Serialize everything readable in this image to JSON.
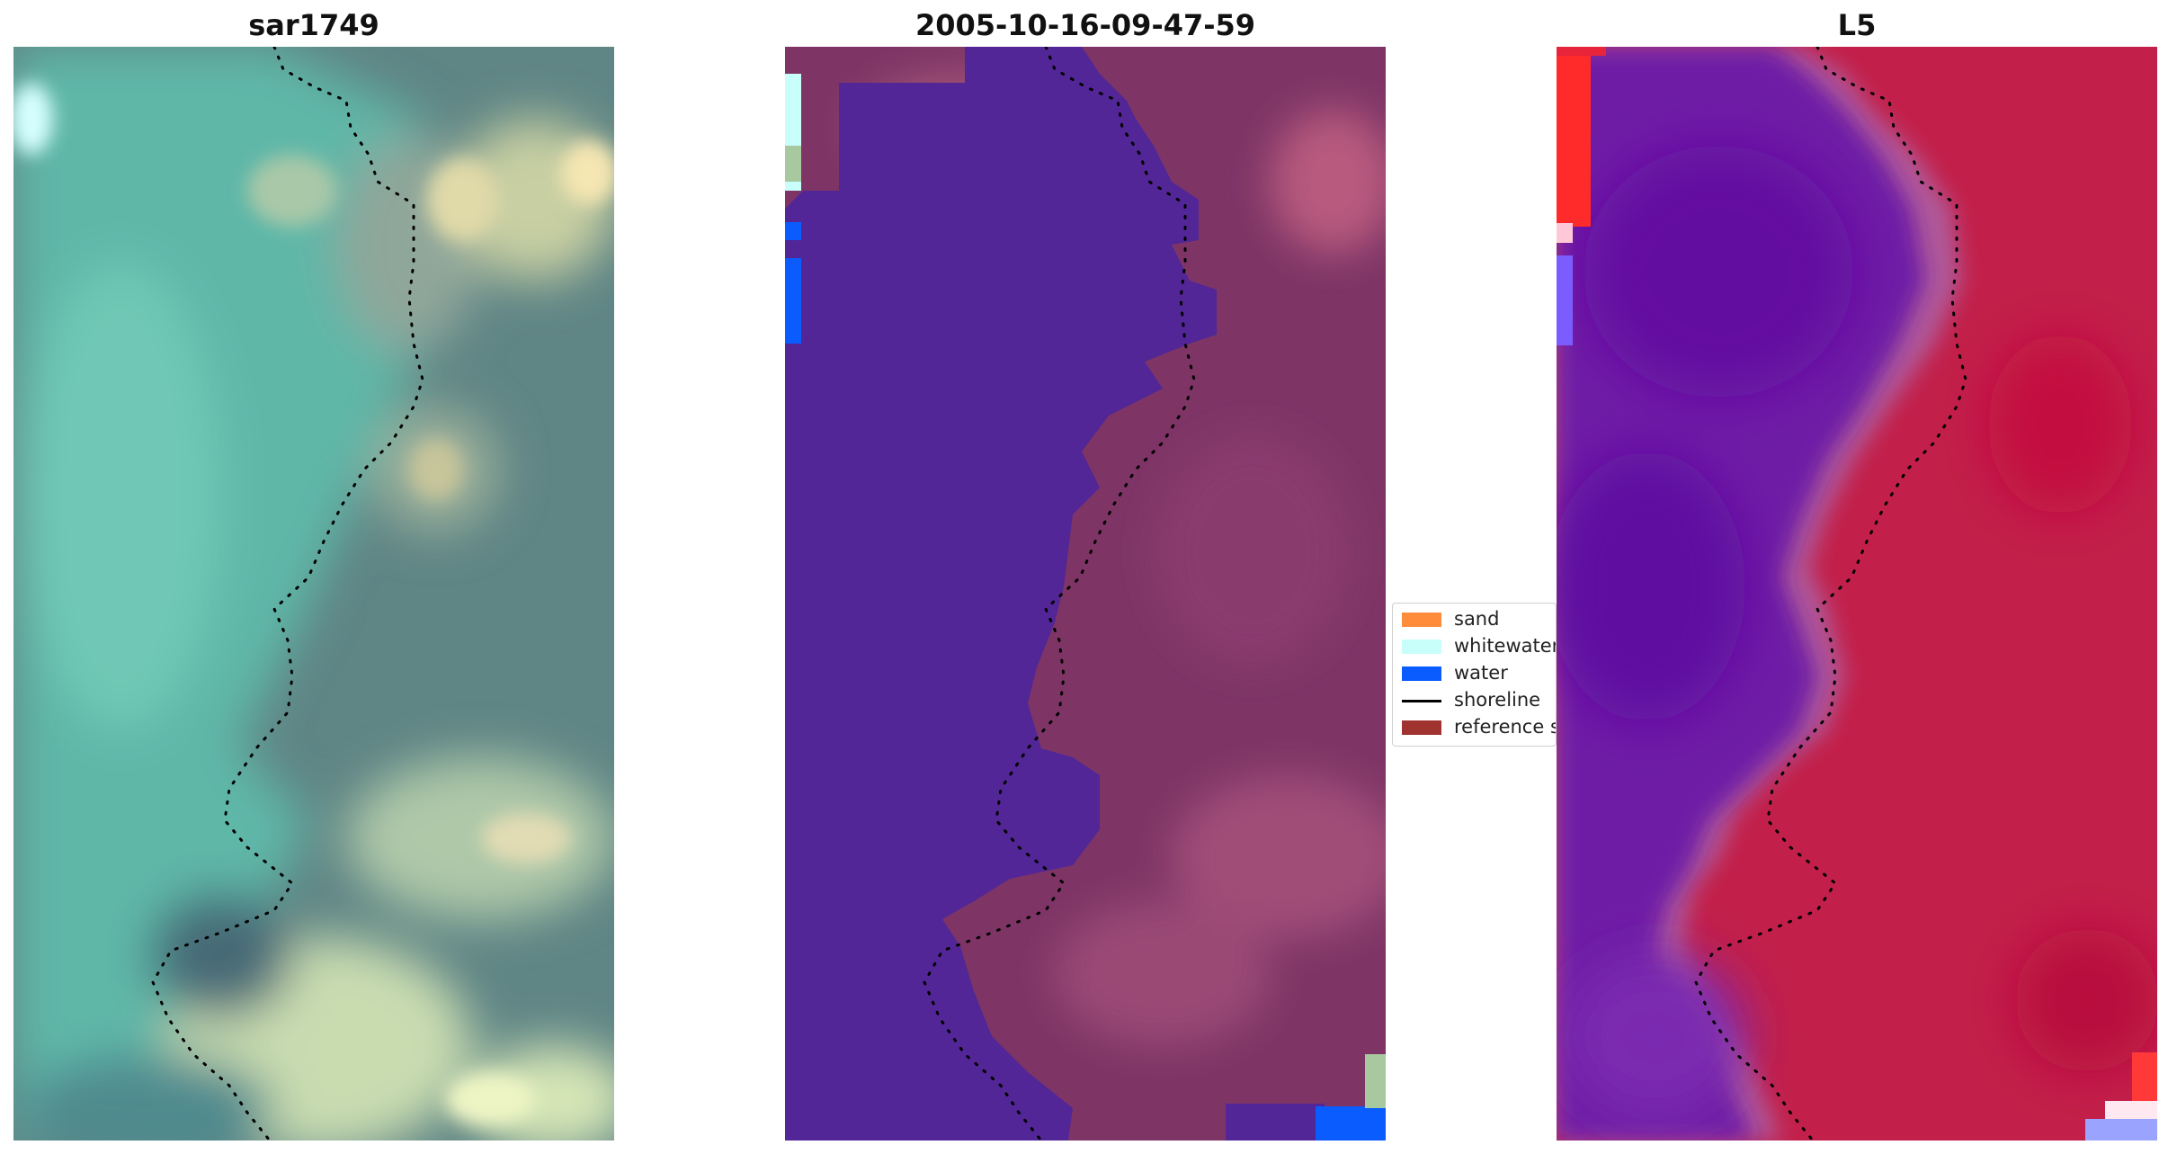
{
  "panels": [
    {
      "title": "sar1749",
      "kind": "rgb"
    },
    {
      "title": "2005-10-16-09-47-59",
      "kind": "classified"
    },
    {
      "title": "L5",
      "kind": "index"
    }
  ],
  "legend": {
    "items": [
      {
        "label": "sand",
        "color": "#ff8c3a",
        "kind": "patch"
      },
      {
        "label": "whitewater",
        "color": "#c8fffb",
        "kind": "patch"
      },
      {
        "label": "water",
        "color": "#0a5cff",
        "kind": "patch"
      },
      {
        "label": "shoreline",
        "color": "#000000",
        "kind": "line"
      },
      {
        "label": "reference s",
        "color": "#a0322f",
        "kind": "patch"
      }
    ]
  },
  "colors": {
    "classified_water": "#522696",
    "classified_land": "#7e3566",
    "rgb_water": "#5fb7a8",
    "rgb_land": "#5f8585",
    "rgb_sand": "#d2d6a8",
    "index_water": "#6a14a6",
    "index_land": "#c2204a"
  }
}
